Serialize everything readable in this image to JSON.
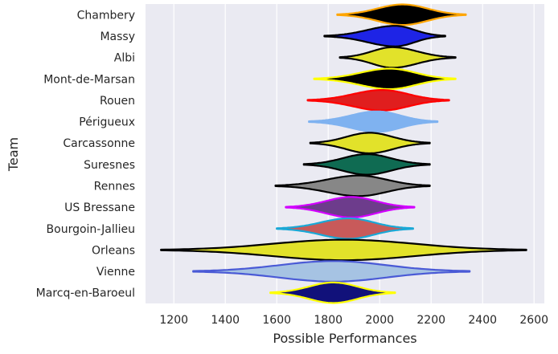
{
  "chart_data": {
    "type": "violin",
    "xlabel": "Possible Performances",
    "ylabel": "Team",
    "xlim": [
      1090,
      2640
    ],
    "xticks": [
      1200,
      1400,
      1600,
      1800,
      2000,
      2200,
      2400,
      2600
    ],
    "grid": true,
    "background": "#eaeaf2",
    "teams": [
      {
        "name": "Chambery",
        "center": 2090,
        "low": 1835,
        "high": 2335,
        "width": 1.0,
        "fill": "#000000",
        "edge": "#ffa500"
      },
      {
        "name": "Massy",
        "center": 2060,
        "low": 1785,
        "high": 2255,
        "width": 1.0,
        "fill": "#1e24e6",
        "edge": "#000000"
      },
      {
        "name": "Albi",
        "center": 2050,
        "low": 1845,
        "high": 2295,
        "width": 1.0,
        "fill": "#e2e22a",
        "edge": "#000000"
      },
      {
        "name": "Mont-de-Marsan",
        "center": 2040,
        "low": 1745,
        "high": 2295,
        "width": 1.0,
        "fill": "#000000",
        "edge": "#ffff00"
      },
      {
        "name": "Rouen",
        "center": 2010,
        "low": 1720,
        "high": 2270,
        "width": 1.0,
        "fill": "#e01e1e",
        "edge": "#ff0000"
      },
      {
        "name": "Périgueux",
        "center": 1990,
        "low": 1725,
        "high": 2225,
        "width": 1.0,
        "fill": "#7fb2f0",
        "edge": "#7fb2f0"
      },
      {
        "name": "Carcassonne",
        "center": 1960,
        "low": 1730,
        "high": 2195,
        "width": 1.0,
        "fill": "#e2e22a",
        "edge": "#000000"
      },
      {
        "name": "Suresnes",
        "center": 1950,
        "low": 1705,
        "high": 2195,
        "width": 1.0,
        "fill": "#0f6b52",
        "edge": "#000000"
      },
      {
        "name": "Rennes",
        "center": 1920,
        "low": 1595,
        "high": 2195,
        "width": 1.0,
        "fill": "#878787",
        "edge": "#000000"
      },
      {
        "name": "US Bressane",
        "center": 1890,
        "low": 1635,
        "high": 2135,
        "width": 1.0,
        "fill": "#6d3c8c",
        "edge": "#d200ff"
      },
      {
        "name": "Bourgoin-Jallieu",
        "center": 1880,
        "low": 1600,
        "high": 2130,
        "width": 1.0,
        "fill": "#c85a5a",
        "edge": "#1aa8d6"
      },
      {
        "name": "Orleans",
        "center": 1860,
        "low": 1150,
        "high": 2570,
        "width": 1.0,
        "fill": "#e2e22a",
        "edge": "#000000"
      },
      {
        "name": "Vienne",
        "center": 1820,
        "low": 1275,
        "high": 2350,
        "width": 1.0,
        "fill": "#a6c3e3",
        "edge": "#4a5ad6"
      },
      {
        "name": "Marcq-en-Baroeul",
        "center": 1820,
        "low": 1575,
        "high": 2060,
        "width": 1.0,
        "fill": "#11117a",
        "edge": "#ffff00"
      }
    ]
  }
}
